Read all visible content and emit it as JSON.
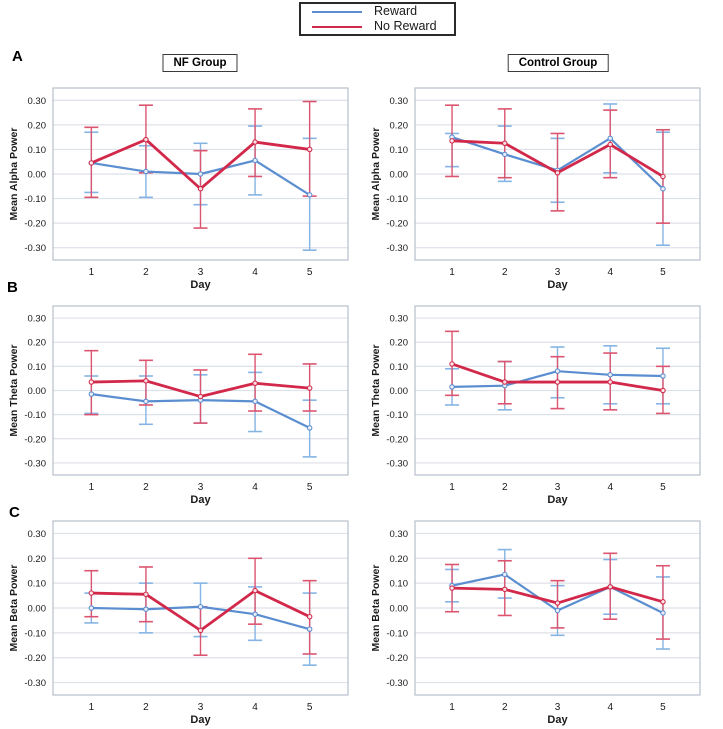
{
  "figure": {
    "panels": [
      {
        "label": "A"
      },
      {
        "label": "B"
      },
      {
        "label": "C"
      }
    ],
    "column_titles": [
      "NF Group",
      "Control Group"
    ],
    "legend": {
      "items": [
        {
          "label": "Reward",
          "color": "#5b8ed0"
        },
        {
          "label": "No Reward",
          "color": "#d2294b"
        }
      ]
    }
  },
  "colors": {
    "reward_line": "#5b8ed0",
    "reward_error": "#85b4e4",
    "no_reward_line": "#d2294b",
    "no_reward_error": "#dc5570",
    "grid": "#dde1e9",
    "frame": "#b8bfca",
    "text": "#1a1a1a"
  },
  "chart_data": [
    {
      "id": "alpha-nf",
      "type": "line",
      "panel": "A",
      "group": "NF Group",
      "xlabel": "Day",
      "ylabel": "Mean Alpha Power",
      "categories": [
        "1",
        "2",
        "3",
        "4",
        "5"
      ],
      "ylim": [
        -0.35,
        0.35
      ],
      "yticks": [
        0.3,
        0.2,
        0.1,
        0.0,
        -0.1,
        -0.2,
        -0.3
      ],
      "grid": true,
      "series": [
        {
          "name": "Reward",
          "color": "#5b8ed0",
          "err_color": "#85b4e4",
          "values": [
            0.045,
            0.01,
            0.0,
            0.055,
            -0.085
          ],
          "err_lo": [
            -0.075,
            -0.095,
            -0.125,
            -0.085,
            -0.31
          ],
          "err_hi": [
            0.17,
            0.115,
            0.125,
            0.195,
            0.145
          ]
        },
        {
          "name": "No Reward",
          "color": "#d2294b",
          "err_color": "#dc5570",
          "values": [
            0.045,
            0.14,
            -0.06,
            0.13,
            0.1
          ],
          "err_lo": [
            -0.095,
            0.005,
            -0.22,
            -0.01,
            -0.09
          ],
          "err_hi": [
            0.19,
            0.28,
            0.095,
            0.265,
            0.295
          ]
        }
      ]
    },
    {
      "id": "alpha-control",
      "type": "line",
      "panel": "A",
      "group": "Control Group",
      "xlabel": "Day",
      "ylabel": "Mean Alpha Power",
      "categories": [
        "1",
        "2",
        "3",
        "4",
        "5"
      ],
      "ylim": [
        -0.35,
        0.35
      ],
      "yticks": [
        0.3,
        0.2,
        0.1,
        0.0,
        -0.1,
        -0.2,
        -0.3
      ],
      "grid": true,
      "series": [
        {
          "name": "Reward",
          "color": "#5b8ed0",
          "err_color": "#85b4e4",
          "values": [
            0.15,
            0.08,
            0.015,
            0.145,
            -0.06
          ],
          "err_lo": [
            0.03,
            -0.03,
            -0.115,
            0.005,
            -0.29
          ],
          "err_hi": [
            0.165,
            0.195,
            0.145,
            0.285,
            0.17
          ]
        },
        {
          "name": "No Reward",
          "color": "#d2294b",
          "err_color": "#dc5570",
          "values": [
            0.135,
            0.125,
            0.005,
            0.12,
            -0.01
          ],
          "err_lo": [
            -0.01,
            -0.015,
            -0.15,
            -0.015,
            -0.2
          ],
          "err_hi": [
            0.28,
            0.265,
            0.165,
            0.26,
            0.18
          ]
        }
      ]
    },
    {
      "id": "theta-nf",
      "type": "line",
      "panel": "B",
      "group": "NF Group",
      "xlabel": "Day",
      "ylabel": "Mean Theta Power",
      "categories": [
        "1",
        "2",
        "3",
        "4",
        "5"
      ],
      "ylim": [
        -0.35,
        0.35
      ],
      "yticks": [
        0.3,
        0.2,
        0.1,
        0.0,
        -0.1,
        -0.2,
        -0.3
      ],
      "grid": true,
      "series": [
        {
          "name": "Reward",
          "color": "#5b8ed0",
          "err_color": "#85b4e4",
          "values": [
            -0.015,
            -0.045,
            -0.04,
            -0.045,
            -0.155
          ],
          "err_lo": [
            -0.095,
            -0.14,
            -0.135,
            -0.17,
            -0.275
          ],
          "err_hi": [
            0.06,
            0.06,
            0.065,
            0.075,
            -0.04
          ]
        },
        {
          "name": "No Reward",
          "color": "#d2294b",
          "err_color": "#dc5570",
          "values": [
            0.035,
            0.04,
            -0.025,
            0.03,
            0.01
          ],
          "err_lo": [
            -0.1,
            -0.06,
            -0.135,
            -0.085,
            -0.085
          ],
          "err_hi": [
            0.165,
            0.125,
            0.085,
            0.15,
            0.11
          ]
        }
      ]
    },
    {
      "id": "theta-control",
      "type": "line",
      "panel": "B",
      "group": "Control Group",
      "xlabel": "Day",
      "ylabel": "Mean Theta Power",
      "categories": [
        "1",
        "2",
        "3",
        "4",
        "5"
      ],
      "ylim": [
        -0.35,
        0.35
      ],
      "yticks": [
        0.3,
        0.2,
        0.1,
        0.0,
        -0.1,
        -0.2,
        -0.3
      ],
      "grid": true,
      "series": [
        {
          "name": "Reward",
          "color": "#5b8ed0",
          "err_color": "#85b4e4",
          "values": [
            0.015,
            0.02,
            0.08,
            0.065,
            0.06
          ],
          "err_lo": [
            -0.06,
            -0.08,
            -0.03,
            -0.055,
            -0.055
          ],
          "err_hi": [
            0.09,
            0.12,
            0.18,
            0.185,
            0.175
          ]
        },
        {
          "name": "No Reward",
          "color": "#d2294b",
          "err_color": "#dc5570",
          "values": [
            0.11,
            0.035,
            0.035,
            0.035,
            0.0
          ],
          "err_lo": [
            -0.02,
            -0.055,
            -0.075,
            -0.08,
            -0.095
          ],
          "err_hi": [
            0.245,
            0.12,
            0.14,
            0.155,
            0.1
          ]
        }
      ]
    },
    {
      "id": "beta-nf",
      "type": "line",
      "panel": "C",
      "group": "NF Group",
      "xlabel": "Day",
      "ylabel": "Mean Beta Power",
      "categories": [
        "1",
        "2",
        "3",
        "4",
        "5"
      ],
      "ylim": [
        -0.35,
        0.35
      ],
      "yticks": [
        0.3,
        0.2,
        0.1,
        0.0,
        -0.1,
        -0.2,
        -0.3
      ],
      "grid": true,
      "series": [
        {
          "name": "Reward",
          "color": "#5b8ed0",
          "err_color": "#85b4e4",
          "values": [
            0.0,
            -0.005,
            0.005,
            -0.025,
            -0.085
          ],
          "err_lo": [
            -0.06,
            -0.1,
            -0.115,
            -0.13,
            -0.23
          ],
          "err_hi": [
            0.06,
            0.1,
            0.1,
            0.085,
            0.06
          ]
        },
        {
          "name": "No Reward",
          "color": "#d2294b",
          "err_color": "#dc5570",
          "values": [
            0.06,
            0.055,
            -0.09,
            0.07,
            -0.035
          ],
          "err_lo": [
            -0.035,
            -0.055,
            -0.19,
            -0.065,
            -0.185
          ],
          "err_hi": [
            0.15,
            0.165,
            0.005,
            0.2,
            0.11
          ]
        }
      ]
    },
    {
      "id": "beta-control",
      "type": "line",
      "panel": "C",
      "group": "Control Group",
      "xlabel": "Day",
      "ylabel": "Mean Beta Power",
      "categories": [
        "1",
        "2",
        "3",
        "4",
        "5"
      ],
      "ylim": [
        -0.35,
        0.35
      ],
      "yticks": [
        0.3,
        0.2,
        0.1,
        0.0,
        -0.1,
        -0.2,
        -0.3
      ],
      "grid": true,
      "series": [
        {
          "name": "Reward",
          "color": "#5b8ed0",
          "err_color": "#85b4e4",
          "values": [
            0.09,
            0.135,
            -0.01,
            0.085,
            -0.02
          ],
          "err_lo": [
            0.025,
            0.04,
            -0.11,
            -0.025,
            -0.165
          ],
          "err_hi": [
            0.155,
            0.235,
            0.09,
            0.195,
            0.125
          ]
        },
        {
          "name": "No Reward",
          "color": "#d2294b",
          "err_color": "#dc5570",
          "values": [
            0.08,
            0.075,
            0.02,
            0.085,
            0.025
          ],
          "err_lo": [
            -0.015,
            -0.03,
            -0.08,
            -0.045,
            -0.125
          ],
          "err_hi": [
            0.175,
            0.19,
            0.11,
            0.22,
            0.17
          ]
        }
      ]
    }
  ]
}
